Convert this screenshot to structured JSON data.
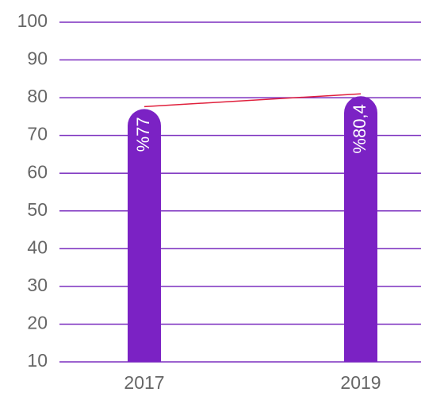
{
  "chart_data": {
    "type": "bar",
    "categories": [
      "2017",
      "2019"
    ],
    "values": [
      77,
      80.4
    ],
    "value_labels": [
      "%77",
      "%80,4"
    ],
    "color": "#7b22c4",
    "trend_color": "#e0203c",
    "ylim": [
      10,
      100
    ],
    "yticks": [
      10,
      20,
      30,
      40,
      50,
      60,
      70,
      80,
      90,
      100
    ],
    "grid": true
  }
}
